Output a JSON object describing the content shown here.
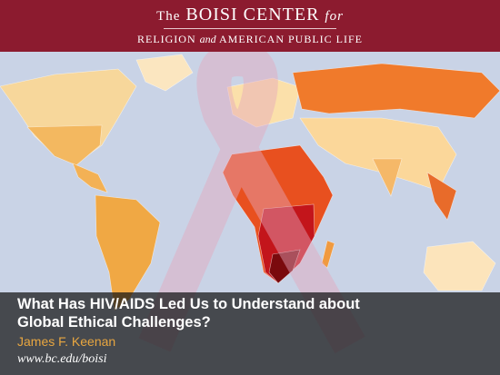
{
  "header": {
    "title_prefix": "The",
    "title_main": "BOISI CENTER",
    "title_suffix": "for",
    "subtitle_part1": "RELIGION",
    "subtitle_part2": "and",
    "subtitle_part3": "AMERICAN PUBLIC LIFE"
  },
  "slide": {
    "title_lines": [
      "What Has HIV/AIDS Led Us to Understand about",
      "Global Ethical Challenges?"
    ],
    "author": "James F. Keenan",
    "url": "www.bc.edu/boisi"
  }
}
